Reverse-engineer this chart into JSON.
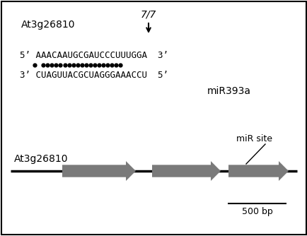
{
  "bg_color": "#ffffff",
  "border_color": "#000000",
  "title_label": "At3g26810",
  "score_label": "7/7",
  "mirna_label": "miR393a",
  "dots_on": [
    0,
    2,
    3,
    4,
    5,
    6,
    7,
    8,
    9,
    10,
    11,
    12,
    13,
    14,
    15,
    16,
    17,
    18,
    19,
    20
  ],
  "gene_label": "At3g26810",
  "mir_site_label": "miR site",
  "scale_label": "500 bp",
  "exon_color": "#7a7a7a",
  "line_color": "#000000",
  "text_color": "#000000",
  "seq_top_label": "5’ AAACAAUGCGAUCCCUUUGGA  3’",
  "seq_bot_label": "3’ CUAGUUACGCUAGGGAAACCU  5’"
}
